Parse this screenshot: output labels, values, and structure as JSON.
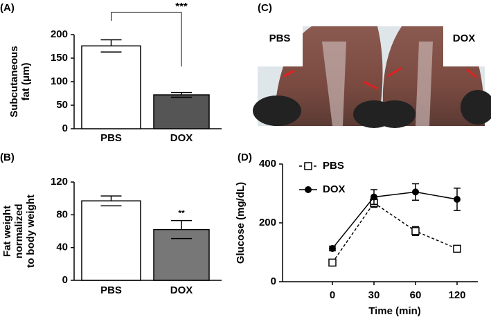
{
  "chart_data": [
    {
      "type": "bar",
      "label": "(A)",
      "ylabel": [
        "Subcutaneous",
        "fat (μm)"
      ],
      "categories": [
        "PBS",
        "DOX"
      ],
      "values": [
        176,
        72
      ],
      "errors": [
        13,
        5
      ],
      "colors": [
        "#ffffff",
        "#555555"
      ],
      "ylim": [
        0,
        200
      ],
      "yticks": [
        0,
        50,
        100,
        150,
        200
      ],
      "annotation": "***",
      "bracket": true
    },
    {
      "type": "bar",
      "label": "(B)",
      "ylabel": [
        "Fat weight",
        "normalized",
        "to body weight"
      ],
      "categories": [
        "PBS",
        "DOX"
      ],
      "values": [
        97,
        62
      ],
      "errors": [
        6,
        11
      ],
      "colors": [
        "#ffffff",
        "#777777"
      ],
      "ylim": [
        0,
        120
      ],
      "yticks": [
        0,
        40,
        80,
        120
      ],
      "annotation": "**",
      "bracket": false
    },
    {
      "type": "line",
      "label": "(D)",
      "ylabel": [
        "Glucose (mg/dL)"
      ],
      "xlabel": "Time (min)",
      "categories": [
        "0",
        "30",
        "60",
        "120"
      ],
      "ylim": [
        0,
        400
      ],
      "yticks": [
        0,
        200,
        400
      ],
      "series": [
        {
          "name": "PBS",
          "color": "#000000",
          "marker": "square",
          "linestyle": "dashed",
          "values": [
            65,
            268,
            172,
            112
          ],
          "errors": [
            10,
            15,
            15,
            8
          ]
        },
        {
          "name": "DOX",
          "color": "#000000",
          "marker": "circle",
          "linestyle": "solid",
          "values": [
            113,
            288,
            305,
            280
          ],
          "errors": [
            8,
            25,
            28,
            38
          ]
        }
      ]
    }
  ],
  "photo": {
    "label": "(C)",
    "labels": [
      "PBS",
      "DOX"
    ]
  }
}
